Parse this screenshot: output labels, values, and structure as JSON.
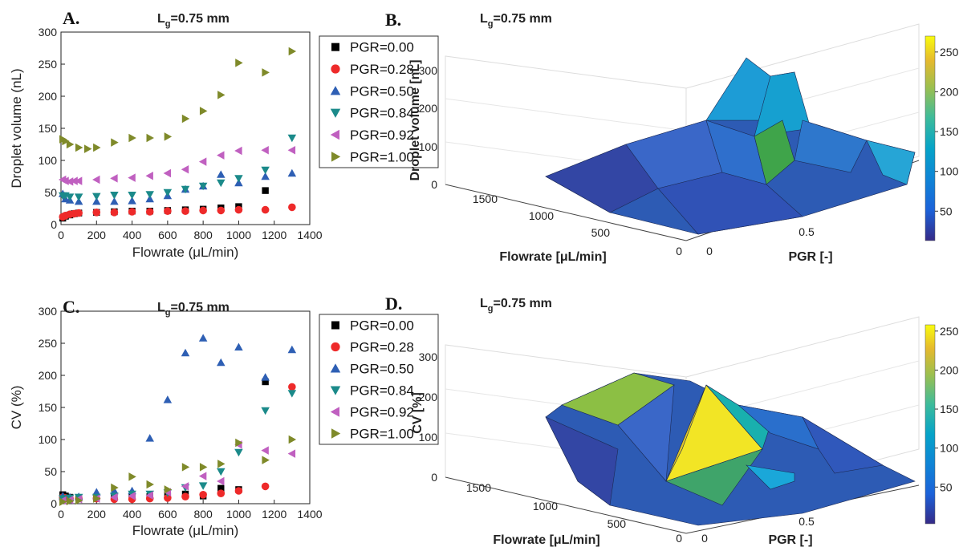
{
  "figure": {
    "panels": [
      {
        "letter": "A.",
        "title_main": "L",
        "title_sub": "g",
        "title_rest": "=0.75 mm"
      },
      {
        "letter": "B.",
        "title_main": "L",
        "title_sub": "g",
        "title_rest": "=0.75 mm"
      },
      {
        "letter": "C.",
        "title_main": "L",
        "title_sub": "g",
        "title_rest": "=0.75 mm"
      },
      {
        "letter": "D.",
        "title_main": "L",
        "title_sub": "g",
        "title_rest": "=0.75 mm"
      }
    ]
  },
  "colors": {
    "PGR=0.00": "#000000",
    "PGR=0.28": "#ee2a2a",
    "PGR=0.50": "#2e5fb4",
    "PGR=0.84": "#1b8a8a",
    "PGR=0.92": "#c060c0",
    "PGR=1.00": "#7f8a2a"
  },
  "chart_data": [
    {
      "type": "scatter",
      "panel": "A.",
      "title": "Lg=0.75 mm",
      "xlabel": "Flowrate (μL/min)",
      "ylabel": "Droplet volume (nL)",
      "xlim": [
        0,
        1400
      ],
      "ylim": [
        0,
        300
      ],
      "xticks": [
        "0",
        "200",
        "400",
        "600",
        "800",
        "1000",
        "1200",
        "1400"
      ],
      "yticks": [
        "0",
        "50",
        "100",
        "150",
        "200",
        "250",
        "300"
      ],
      "legend": "top-right",
      "series": [
        {
          "name": "PGR=0.00",
          "marker": "square",
          "x": [
            10,
            25,
            50,
            75,
            100,
            200,
            300,
            400,
            500,
            600,
            700,
            800,
            900,
            1000,
            1150
          ],
          "y": [
            10,
            13,
            15,
            17,
            18,
            19,
            20,
            21,
            21,
            22,
            23,
            24,
            26,
            28,
            53
          ]
        },
        {
          "name": "PGR=0.28",
          "marker": "circle",
          "x": [
            10,
            25,
            50,
            75,
            100,
            200,
            300,
            400,
            500,
            600,
            700,
            800,
            900,
            1000,
            1150,
            1300
          ],
          "y": [
            12,
            14,
            16,
            17,
            18,
            19,
            19,
            20,
            20,
            21,
            21,
            22,
            22,
            23,
            23,
            27
          ]
        },
        {
          "name": "PGR=0.50",
          "marker": "triangle-up",
          "x": [
            10,
            25,
            50,
            100,
            200,
            300,
            400,
            500,
            600,
            700,
            800,
            900,
            1000,
            1150,
            1300
          ],
          "y": [
            48,
            40,
            38,
            36,
            36,
            36,
            37,
            40,
            45,
            55,
            60,
            78,
            65,
            75,
            80
          ]
        },
        {
          "name": "PGR=0.84",
          "marker": "triangle-down",
          "x": [
            10,
            25,
            50,
            100,
            200,
            300,
            400,
            500,
            600,
            700,
            800,
            900,
            1000,
            1150,
            1300
          ],
          "y": [
            45,
            45,
            43,
            43,
            44,
            46,
            46,
            47,
            50,
            55,
            60,
            65,
            72,
            85,
            135
          ]
        },
        {
          "name": "PGR=0.92",
          "marker": "triangle-left",
          "x": [
            10,
            25,
            50,
            75,
            100,
            200,
            300,
            400,
            500,
            600,
            700,
            800,
            900,
            1000,
            1150,
            1300
          ],
          "y": [
            70,
            68,
            67,
            68,
            68,
            70,
            72,
            73,
            76,
            80,
            86,
            98,
            108,
            115,
            116,
            116
          ]
        },
        {
          "name": "PGR=1.00",
          "marker": "triangle-right",
          "x": [
            10,
            25,
            50,
            100,
            150,
            200,
            300,
            400,
            500,
            600,
            700,
            800,
            900,
            1000,
            1150,
            1300
          ],
          "y": [
            133,
            130,
            125,
            120,
            118,
            120,
            128,
            135,
            135,
            137,
            165,
            177,
            202,
            252,
            237,
            270
          ]
        }
      ]
    },
    {
      "type": "surface",
      "panel": "B.",
      "title": "Lg=0.75 mm",
      "xlabel": "PGR [-]",
      "ylabel": "Flowrate [μL/min]",
      "zlabel": "Droplet volume [nL]",
      "xticks": [
        "0",
        "0.5"
      ],
      "yticks": [
        "0",
        "500",
        "1000",
        "1500"
      ],
      "zticks": [
        "0",
        "100",
        "200",
        "300"
      ],
      "colorbar_ticks": [
        "50",
        "100",
        "150",
        "200",
        "250"
      ],
      "colorbar_range": [
        13,
        270
      ]
    },
    {
      "type": "scatter",
      "panel": "C.",
      "title": "Lg=0.75 mm",
      "xlabel": "Flowrate (μL/min)",
      "ylabel": "CV (%)",
      "xlim": [
        0,
        1400
      ],
      "ylim": [
        0,
        300
      ],
      "xticks": [
        "0",
        "200",
        "400",
        "600",
        "800",
        "1000",
        "1200",
        "1400"
      ],
      "yticks": [
        "0",
        "50",
        "100",
        "150",
        "200",
        "250",
        "300"
      ],
      "legend": "top-right",
      "series": [
        {
          "name": "PGR=0.00",
          "marker": "square",
          "x": [
            10,
            25,
            50,
            100,
            200,
            300,
            400,
            500,
            600,
            700,
            800,
            900,
            1000,
            1150
          ],
          "y": [
            14,
            12,
            10,
            9,
            9,
            10,
            10,
            11,
            12,
            15,
            12,
            24,
            22,
            190
          ]
        },
        {
          "name": "PGR=0.28",
          "marker": "circle",
          "x": [
            10,
            25,
            50,
            100,
            200,
            300,
            400,
            500,
            600,
            700,
            800,
            900,
            1000,
            1150,
            1300
          ],
          "y": [
            10,
            9,
            8,
            8,
            8,
            7,
            7,
            8,
            9,
            11,
            14,
            16,
            20,
            27,
            182
          ]
        },
        {
          "name": "PGR=0.50",
          "marker": "triangle-up",
          "x": [
            10,
            50,
            100,
            200,
            300,
            400,
            500,
            600,
            700,
            800,
            900,
            1000,
            1150,
            1300
          ],
          "y": [
            12,
            10,
            11,
            18,
            20,
            20,
            102,
            162,
            235,
            258,
            220,
            244,
            197,
            240
          ]
        },
        {
          "name": "PGR=0.84",
          "marker": "triangle-down",
          "x": [
            10,
            50,
            100,
            200,
            300,
            400,
            500,
            600,
            700,
            800,
            900,
            1000,
            1150,
            1300
          ],
          "y": [
            8,
            9,
            10,
            10,
            12,
            15,
            15,
            17,
            25,
            28,
            50,
            80,
            145,
            172
          ]
        },
        {
          "name": "PGR=0.92",
          "marker": "triangle-left",
          "x": [
            10,
            50,
            100,
            200,
            300,
            400,
            500,
            600,
            700,
            800,
            900,
            1000,
            1150,
            1300
          ],
          "y": [
            5,
            6,
            7,
            8,
            10,
            12,
            13,
            18,
            27,
            43,
            35,
            92,
            83,
            78
          ]
        },
        {
          "name": "PGR=1.00",
          "marker": "triangle-right",
          "x": [
            10,
            50,
            100,
            200,
            300,
            400,
            500,
            600,
            700,
            800,
            900,
            1000,
            1150,
            1300
          ],
          "y": [
            3,
            4,
            5,
            8,
            25,
            42,
            30,
            22,
            57,
            57,
            62,
            95,
            68,
            100
          ]
        }
      ]
    },
    {
      "type": "surface",
      "panel": "D.",
      "title": "Lg=0.75 mm",
      "xlabel": "PGR [-]",
      "ylabel": "Flowrate [μL/min]",
      "zlabel": "CV [%]",
      "xticks": [
        "0",
        "0.5"
      ],
      "yticks": [
        "0",
        "500",
        "1000",
        "1500"
      ],
      "zticks": [
        "0",
        "100",
        "200",
        "300"
      ],
      "colorbar_ticks": [
        "50",
        "100",
        "150",
        "200",
        "250"
      ],
      "colorbar_range": [
        3,
        258
      ]
    }
  ]
}
